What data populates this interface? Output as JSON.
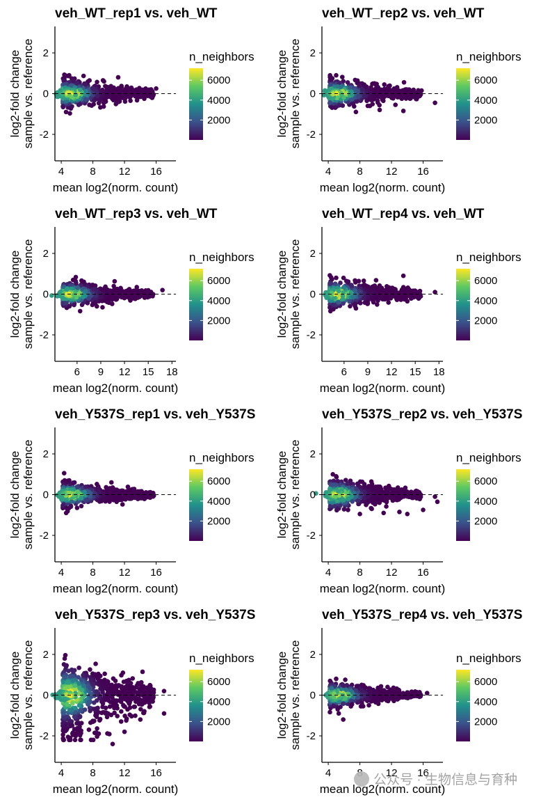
{
  "colors": {
    "viridis": [
      "#440154",
      "#3b528b",
      "#21918c",
      "#5ec962",
      "#fde725"
    ],
    "axis": "#000000",
    "refline": "#000000"
  },
  "common": {
    "xlabel": "mean log2(norm. count)",
    "ylabel_line1": "log2-fold change",
    "ylabel_line2": "sample vs. reference",
    "legend_title": "n_neighbors",
    "legend_ticks": [
      "6000",
      "4000",
      "2000"
    ]
  },
  "watermark": "公众号 · 生物信息与育种",
  "chart_data": [
    {
      "type": "scatter",
      "title": "veh_WT_rep1 vs. veh_WT",
      "xlim": [
        3.2,
        18.5
      ],
      "ylim": [
        -3.3,
        3.3
      ],
      "xticks": [
        4,
        8,
        12,
        16
      ],
      "yticks": [
        -2,
        0,
        2
      ],
      "legend_max": 7200,
      "spread": 0.25,
      "outliers_high": [
        [
          5,
          0.9
        ],
        [
          11.2,
          0.8
        ],
        [
          12.3,
          0.35
        ],
        [
          16,
          0.25
        ]
      ],
      "outliers_low": [
        [
          9.5,
          -0.4
        ],
        [
          14.5,
          -0.25
        ],
        [
          15.5,
          -0.1
        ]
      ]
    },
    {
      "type": "scatter",
      "title": "veh_WT_rep2 vs. veh_WT",
      "xlim": [
        3.2,
        18.5
      ],
      "ylim": [
        -3.3,
        3.3
      ],
      "xticks": [
        4,
        8,
        12,
        16
      ],
      "yticks": [
        -2,
        0,
        2
      ],
      "legend_max": 7200,
      "spread": 0.25,
      "outliers_high": [
        [
          5,
          0.9
        ],
        [
          15.8,
          0.15
        ]
      ],
      "outliers_low": [
        [
          7.5,
          -0.9
        ],
        [
          9,
          -0.6
        ],
        [
          10.5,
          -0.8
        ],
        [
          12.5,
          -0.55
        ],
        [
          13.5,
          -0.85
        ],
        [
          17.5,
          -0.45
        ]
      ]
    },
    {
      "type": "scatter",
      "title": "veh_WT_rep3 vs. veh_WT",
      "xlim": [
        3.2,
        18.5
      ],
      "ylim": [
        -3.3,
        3.3
      ],
      "xticks": [
        6,
        9,
        12,
        15,
        18
      ],
      "yticks": [
        -2,
        0,
        2
      ],
      "legend_max": 7200,
      "spread": 0.22,
      "outliers_high": [
        [
          5.5,
          0.7
        ],
        [
          16.8,
          0.2
        ]
      ],
      "outliers_low": [
        [
          8.5,
          -0.6
        ],
        [
          10,
          -0.2
        ]
      ]
    },
    {
      "type": "scatter",
      "title": "veh_WT_rep4 vs. veh_WT",
      "xlim": [
        3.2,
        18.5
      ],
      "ylim": [
        -3.3,
        3.3
      ],
      "xticks": [
        6,
        9,
        12,
        15,
        18
      ],
      "yticks": [
        -2,
        0,
        2
      ],
      "legend_max": 7200,
      "spread": 0.25,
      "outliers_high": [
        [
          13.5,
          0.9
        ],
        [
          5,
          0.8
        ]
      ],
      "outliers_low": [
        [
          7.5,
          -0.7
        ],
        [
          9,
          -0.45
        ],
        [
          14,
          -0.35
        ],
        [
          17.5,
          0.1
        ]
      ]
    },
    {
      "type": "scatter",
      "title": "veh_Y537S_rep1 vs. veh_Y537S",
      "xlim": [
        3.2,
        18.5
      ],
      "ylim": [
        -3.3,
        3.3
      ],
      "xticks": [
        4,
        8,
        12,
        16
      ],
      "yticks": [
        -2,
        0,
        2
      ],
      "legend_max": 7200,
      "spread": 0.22,
      "outliers_high": [
        [
          5,
          0.7
        ],
        [
          10.5,
          0.35
        ]
      ],
      "outliers_low": [
        [
          11,
          -0.35
        ],
        [
          12.8,
          -0.2
        ],
        [
          15,
          -0.1
        ]
      ]
    },
    {
      "type": "scatter",
      "title": "veh_Y537S_rep2 vs. veh_Y537S",
      "xlim": [
        3.2,
        18.5
      ],
      "ylim": [
        -3.3,
        3.3
      ],
      "xticks": [
        4,
        8,
        12,
        16
      ],
      "yticks": [
        -2,
        0,
        2
      ],
      "legend_max": 7200,
      "spread": 0.28,
      "outliers_high": [
        [
          5,
          0.9
        ],
        [
          17.5,
          -0.1
        ]
      ],
      "outliers_low": [
        [
          6.5,
          -0.75
        ],
        [
          8,
          -0.95
        ],
        [
          9.5,
          -0.7
        ],
        [
          11,
          -0.9
        ],
        [
          13,
          -0.85
        ],
        [
          14,
          -0.95
        ],
        [
          16,
          -0.75
        ],
        [
          17.8,
          -0.35
        ]
      ]
    },
    {
      "type": "scatter",
      "title": "veh_Y537S_rep3 vs. veh_Y537S",
      "xlim": [
        3.2,
        18.5
      ],
      "ylim": [
        -3.3,
        3.3
      ],
      "xticks": [
        4,
        8,
        12,
        16
      ],
      "yticks": [
        -2,
        0,
        2
      ],
      "legend_max": 7200,
      "spread": 0.6,
      "skew_down": 1.7,
      "outliers_high": [
        [
          9.5,
          1.05
        ],
        [
          11.8,
          1.1
        ],
        [
          17,
          0.2
        ]
      ],
      "outliers_low": [
        [
          10.5,
          -2.4
        ],
        [
          7.5,
          -1.7
        ],
        [
          12,
          -1.8
        ],
        [
          17,
          -0.9
        ],
        [
          14,
          -1.2
        ]
      ]
    },
    {
      "type": "scatter",
      "title": "veh_Y537S_rep4 vs. veh_Y537S",
      "xlim": [
        3.2,
        18.5
      ],
      "ylim": [
        -3.3,
        3.3
      ],
      "xticks": [
        4,
        8,
        12,
        16
      ],
      "yticks": [
        -2,
        0,
        2
      ],
      "legend_max": 7200,
      "spread": 0.22,
      "outliers_high": [
        [
          5,
          0.8
        ],
        [
          11.5,
          0.4
        ]
      ],
      "outliers_low": [
        [
          7,
          -0.45
        ],
        [
          10,
          -0.35
        ],
        [
          16.5,
          0.1
        ]
      ]
    }
  ]
}
